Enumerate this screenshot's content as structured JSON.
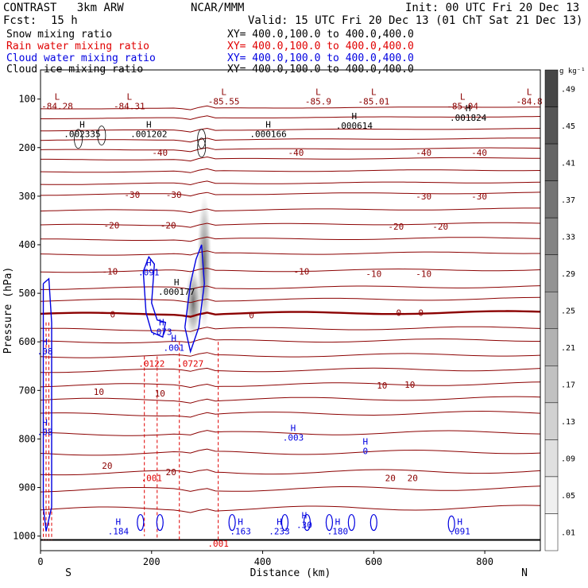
{
  "header": {
    "model": "CONTRAST   3km ARW",
    "org": "NCAR/MMM",
    "init": "Init: 00 UTC Fri 20 Dec 13",
    "fcst_label": "Fcst:",
    "fcst_value": "15 h",
    "valid": "Valid: 15 UTC Fri 20 Dec 13 (01 ChT Sat 21 Dec 13)"
  },
  "fields": [
    {
      "name": "Snow mixing ratio",
      "xy": "XY= 400.0,100.0 to 400.0,400.0",
      "color": "#000000"
    },
    {
      "name": "Rain water mixing ratio",
      "xy": "XY= 400.0,100.0 to 400.0,400.0",
      "color": "#e00000"
    },
    {
      "name": "Cloud water mixing ratio",
      "xy": "XY= 400.0,100.0 to 400.0,400.0",
      "color": "#0000e0"
    },
    {
      "name": "Cloud ice mixing ratio",
      "xy": "XY= 400.0,100.0 to 400.0,400.0",
      "color": "#000000"
    }
  ],
  "chart_data": {
    "type": "contour cross-section",
    "xlabel": "Distance (km)",
    "ylabel": "Pressure (hPa)",
    "xlim": [
      0,
      900
    ],
    "ylim": [
      1030,
      40
    ],
    "y_inverted": true,
    "x_ticks": [
      0,
      200,
      400,
      600,
      800
    ],
    "y_ticks": [
      100,
      200,
      300,
      400,
      500,
      600,
      700,
      800,
      900,
      1000
    ],
    "x_end_labels": {
      "left": "S",
      "right": "N"
    },
    "colorbar": {
      "unit": "g kg⁻¹",
      "labels": [
        ".49",
        ".45",
        ".41",
        ".37",
        ".33",
        ".29",
        ".25",
        ".21",
        ".17",
        ".13",
        ".09",
        ".05",
        ".01"
      ],
      "levels_min": 0.01,
      "levels_max": 0.49,
      "interval": 0.04
    },
    "temperature_contours_c": {
      "color": "#8b0000",
      "labels": [
        {
          "x": 215,
          "p": 210,
          "text": "-40"
        },
        {
          "x": 460,
          "p": 210,
          "text": "-40"
        },
        {
          "x": 690,
          "p": 210,
          "text": "-40"
        },
        {
          "x": 790,
          "p": 210,
          "text": "-40"
        },
        {
          "x": 165,
          "p": 297,
          "text": "-30"
        },
        {
          "x": 240,
          "p": 297,
          "text": "-30"
        },
        {
          "x": 690,
          "p": 300,
          "text": "-30"
        },
        {
          "x": 790,
          "p": 300,
          "text": "-30"
        },
        {
          "x": 128,
          "p": 360,
          "text": "-20"
        },
        {
          "x": 230,
          "p": 360,
          "text": "-20"
        },
        {
          "x": 640,
          "p": 362,
          "text": "-20"
        },
        {
          "x": 720,
          "p": 362,
          "text": "-20"
        },
        {
          "x": 125,
          "p": 455,
          "text": "-10"
        },
        {
          "x": 470,
          "p": 455,
          "text": "-10"
        },
        {
          "x": 600,
          "p": 460,
          "text": "-10"
        },
        {
          "x": 690,
          "p": 460,
          "text": "-10"
        },
        {
          "x": 130,
          "p": 543,
          "text": "0"
        },
        {
          "x": 380,
          "p": 545,
          "text": "0"
        },
        {
          "x": 645,
          "p": 540,
          "text": "0"
        },
        {
          "x": 685,
          "p": 540,
          "text": "0"
        },
        {
          "x": 105,
          "p": 703,
          "text": "10"
        },
        {
          "x": 215,
          "p": 706,
          "text": "10"
        },
        {
          "x": 615,
          "p": 690,
          "text": "10"
        },
        {
          "x": 665,
          "p": 688,
          "text": "10"
        },
        {
          "x": 120,
          "p": 855,
          "text": "20"
        },
        {
          "x": 235,
          "p": 868,
          "text": "20"
        },
        {
          "x": 630,
          "p": 880,
          "text": "20"
        },
        {
          "x": 670,
          "p": 880,
          "text": "20"
        }
      ]
    },
    "pressure_lows": [
      {
        "x": 30,
        "p": 105,
        "text": "-84.28"
      },
      {
        "x": 160,
        "p": 105,
        "text": "-84.31"
      },
      {
        "x": 330,
        "p": 95,
        "text": "-85.55"
      },
      {
        "x": 500,
        "p": 95,
        "text": "-85.9"
      },
      {
        "x": 600,
        "p": 95,
        "text": "-85.01"
      },
      {
        "x": 760,
        "p": 105,
        "text": "-85.04"
      },
      {
        "x": 880,
        "p": 95,
        "text": "-84.8"
      }
    ],
    "snow_highs": [
      {
        "x": 75,
        "p": 165,
        "text": ".002335"
      },
      {
        "x": 195,
        "p": 165,
        "text": ".001202"
      },
      {
        "x": 410,
        "p": 165,
        "text": ".000166"
      },
      {
        "x": 565,
        "p": 148,
        "text": ".000614"
      },
      {
        "x": 770,
        "p": 132,
        "text": ".001824"
      },
      {
        "x": 245,
        "p": 490,
        "text": ".000177"
      }
    ],
    "cloud_water_labels": [
      {
        "x": 195,
        "p": 450,
        "text": ".091"
      },
      {
        "x": 218,
        "p": 573,
        "text": ".073"
      },
      {
        "x": 240,
        "p": 605,
        "text": ".001"
      },
      {
        "x": 8,
        "p": 613,
        "text": ".08"
      },
      {
        "x": 8,
        "p": 779,
        "text": ".08"
      },
      {
        "x": 455,
        "p": 790,
        "text": ".003"
      },
      {
        "x": 585,
        "p": 818,
        "text": "0"
      },
      {
        "x": 140,
        "p": 983,
        "text": ".184"
      },
      {
        "x": 360,
        "p": 983,
        "text": ".163"
      },
      {
        "x": 430,
        "p": 983,
        "text": ".233"
      },
      {
        "x": 475,
        "p": 970,
        "text": ".30"
      },
      {
        "x": 535,
        "p": 983,
        "text": ".180"
      },
      {
        "x": 755,
        "p": 983,
        "text": ".091"
      }
    ],
    "rain_labels": [
      {
        "x": 200,
        "p": 645,
        "text": ".0122"
      },
      {
        "x": 270,
        "p": 645,
        "text": ".0727"
      },
      {
        "x": 200,
        "p": 880,
        "text": ".001"
      },
      {
        "x": 320,
        "p": 1015,
        "text": ".001"
      }
    ]
  }
}
